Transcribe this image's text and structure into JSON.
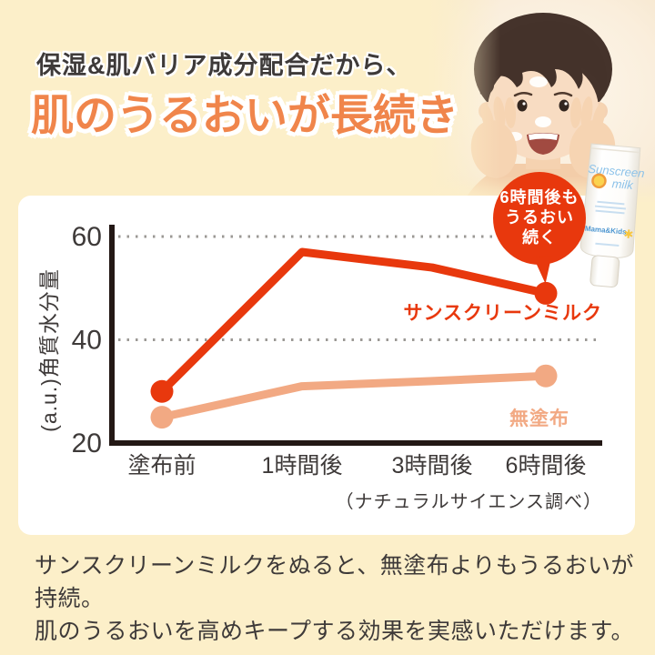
{
  "page": {
    "bg_color": "#FCEFC9",
    "subtitle": "保湿&肌バリア成分配合だから、",
    "title": "肌のうるおいが長続き",
    "title_color": "#F0854B"
  },
  "badge": {
    "lines": [
      "6時間後も",
      "うるおい",
      "続く"
    ],
    "color": "#E8380D"
  },
  "product": {
    "name_line1": "Sunscreen",
    "name_line2": "milk",
    "brand": "Mama&Kids",
    "icons": [
      "sun-icon",
      "star-icon"
    ]
  },
  "chart_data": {
    "type": "line",
    "categories": [
      "塗布前",
      "1時間後",
      "3時間後",
      "6時間後"
    ],
    "series": [
      {
        "name": "サンスクリーンミルク",
        "values": [
          30,
          57,
          54,
          49
        ],
        "color": "#E8380D"
      },
      {
        "name": "無塗布",
        "values": [
          25,
          31,
          32,
          33
        ],
        "color": "#F2A983"
      }
    ],
    "ylabel": "(a.u.)角質水分量",
    "xlabel": "",
    "yticks": [
      20,
      40,
      60
    ],
    "ylim": [
      20,
      63
    ],
    "grid": true,
    "legend_position": "inline-right",
    "note": "（ナチュラルサイエンス調べ）",
    "style": {
      "axis_color": "#231815",
      "grid_color": "#9B9894",
      "text_color": "#3E3A39"
    }
  },
  "footer": {
    "line1": "サンスクリーンミルクをぬると、無塗布よりもうるおいが持続。",
    "line2": "肌のうるおいを高めキープする効果を実感いただけます。"
  }
}
